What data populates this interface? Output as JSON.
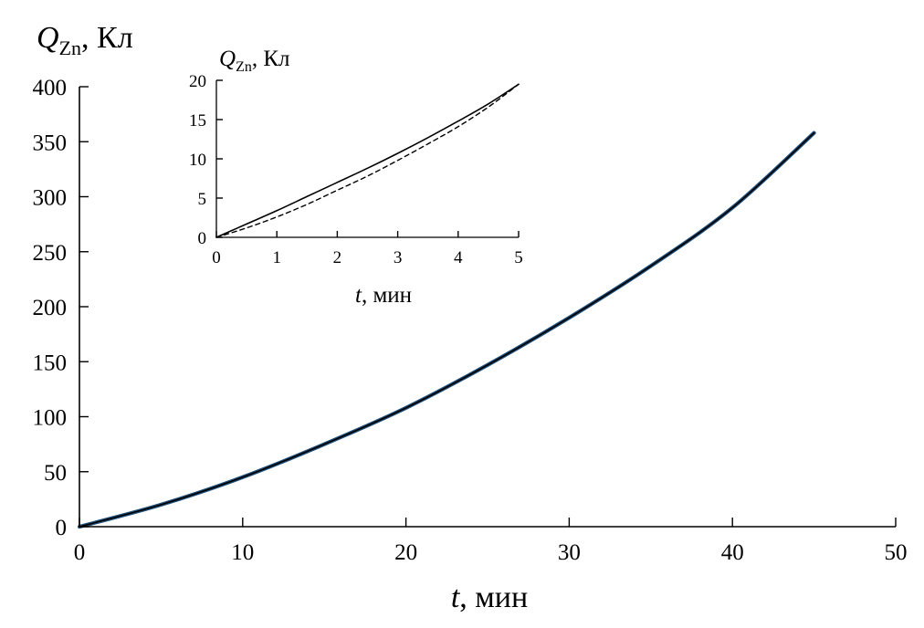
{
  "chart_data": [
    {
      "type": "line",
      "role": "main",
      "ylabel": {
        "var": "Q",
        "sub": "Zn",
        "unit": ", Кл"
      },
      "xlabel": {
        "var": "t",
        "unit": ", мин"
      },
      "xlim": [
        0,
        50
      ],
      "ylim": [
        0,
        400
      ],
      "xticks": [
        0,
        10,
        20,
        30,
        40,
        50
      ],
      "yticks": [
        0,
        50,
        100,
        150,
        200,
        250,
        300,
        350,
        400
      ],
      "grid": false,
      "series": [
        {
          "color": "#1f4e79",
          "x": [
            0,
            5,
            10,
            15,
            20,
            25,
            30,
            35,
            40,
            45
          ],
          "y": [
            0,
            20,
            45,
            75,
            108,
            147,
            190,
            237,
            290,
            358
          ]
        },
        {
          "color": "#000000",
          "x": [
            0,
            5,
            10,
            15,
            20,
            25,
            30,
            35,
            40,
            45
          ],
          "y": [
            0,
            20,
            45,
            75,
            108,
            147,
            190,
            237,
            290,
            358
          ]
        }
      ]
    },
    {
      "type": "line",
      "role": "inset",
      "ylabel": {
        "var": "Q",
        "sub": "Zn",
        "unit": ", Кл"
      },
      "xlabel": {
        "var": "t",
        "unit": ", мин"
      },
      "xlim": [
        0,
        5
      ],
      "ylim": [
        0,
        20
      ],
      "xticks": [
        0,
        1,
        2,
        3,
        4,
        5
      ],
      "yticks": [
        0,
        5,
        10,
        15,
        20
      ],
      "grid": false,
      "series": [
        {
          "style": "solid",
          "color": "#000000",
          "x": [
            0,
            0.5,
            1,
            1.5,
            2,
            2.5,
            3,
            3.5,
            4,
            4.5,
            5
          ],
          "y": [
            0,
            1.7,
            3.4,
            5.2,
            7.0,
            8.8,
            10.7,
            12.7,
            14.8,
            17.0,
            19.5
          ]
        },
        {
          "style": "dashed",
          "color": "#000000",
          "x": [
            0,
            0.5,
            1,
            1.5,
            2,
            2.5,
            3,
            3.5,
            4,
            4.5,
            5
          ],
          "y": [
            0,
            1.2,
            2.6,
            4.2,
            6.0,
            7.8,
            9.8,
            11.9,
            14.1,
            16.6,
            19.5
          ]
        }
      ]
    }
  ]
}
